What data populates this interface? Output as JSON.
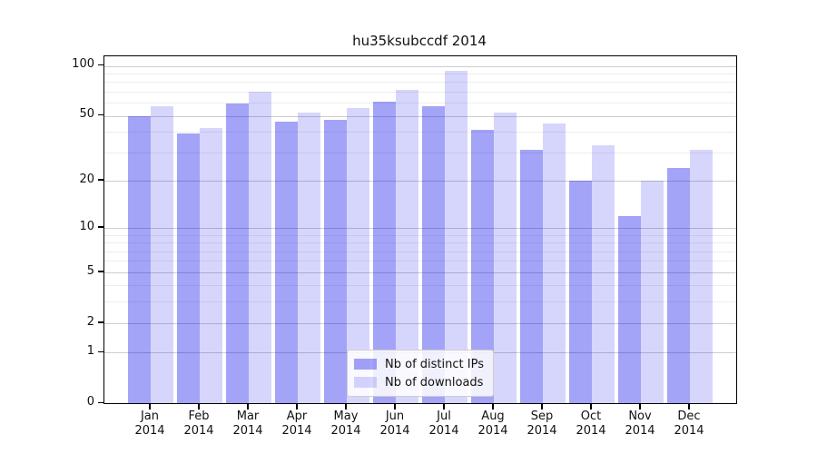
{
  "chart_data": {
    "type": "bar",
    "title": "hu35ksubccdf 2014",
    "xlabel": "",
    "ylabel": "",
    "scale": "log1p",
    "ylim": [
      0,
      114
    ],
    "grid": true,
    "legend_position": "lower center",
    "categories": [
      "Jan",
      "Feb",
      "Mar",
      "Apr",
      "May",
      "Jun",
      "Jul",
      "Aug",
      "Sep",
      "Oct",
      "Nov",
      "Dec"
    ],
    "category_year": "2014",
    "series": [
      {
        "name": "Nb of distinct IPs",
        "slug": "distinct-ips",
        "color": "rgba(0,0,235,0.36)",
        "color_hex_on_white": "#a4a4f3",
        "values": [
          50,
          39,
          59,
          46,
          47,
          61,
          57,
          41,
          31,
          20,
          12,
          24
        ]
      },
      {
        "name": "Nb of downloads",
        "slug": "downloads",
        "color": "rgba(0,0,235,0.16)",
        "color_hex_on_white": "#d6d6fa",
        "values": [
          57,
          42,
          70,
          52,
          56,
          72,
          93,
          52,
          45,
          33,
          20,
          31
        ]
      }
    ],
    "yticks": [
      0,
      1,
      2,
      5,
      10,
      20,
      50,
      100
    ],
    "minor_gridlines": [
      3,
      4,
      6,
      7,
      8,
      9,
      30,
      40,
      60,
      70,
      80,
      90
    ],
    "colors": {
      "major_grid": "#cdcdcd",
      "minor_grid": "#ededed",
      "spine": "#000000",
      "background": "#ffffff",
      "text": "#111111",
      "legend_border": "#cccccc"
    }
  }
}
